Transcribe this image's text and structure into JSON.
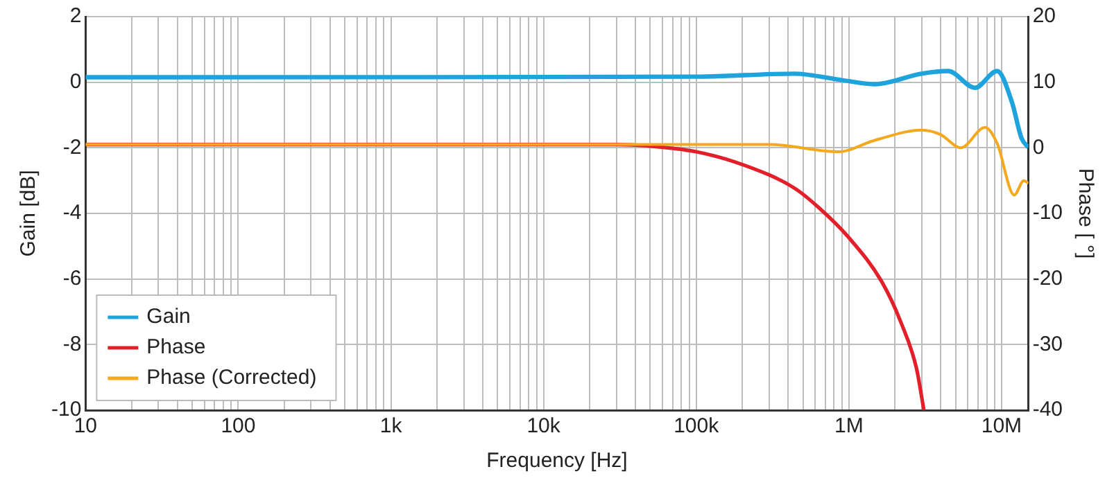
{
  "chart_data": {
    "type": "line",
    "xlabel": "Frequency [Hz]",
    "ylabel": "Gain [dB]",
    "y2label": "Phase [ °]",
    "log": "x",
    "grid": true,
    "legend": "bottom left",
    "marker": "none",
    "line_style": "solid",
    "xlim": [
      10,
      15000000
    ],
    "xticks": [
      10,
      {
        "value": 20,
        "label": null
      },
      {
        "value": 30,
        "label": null
      },
      {
        "value": 40,
        "label": null
      },
      {
        "value": 50,
        "label": null
      },
      {
        "value": 60,
        "label": null
      },
      {
        "value": 70,
        "label": null
      },
      {
        "value": 80,
        "label": null
      },
      {
        "value": 90,
        "label": null
      },
      100,
      {
        "value": 200,
        "label": null
      },
      {
        "value": 300,
        "label": null
      },
      {
        "value": 400,
        "label": null
      },
      {
        "value": 500,
        "label": null
      },
      {
        "value": 600,
        "label": null
      },
      {
        "value": 700,
        "label": null
      },
      {
        "value": 800,
        "label": null
      },
      {
        "value": 900,
        "label": null
      },
      {
        "value": 1000,
        "label": "1k"
      },
      {
        "value": 2000,
        "label": null
      },
      {
        "value": 3000,
        "label": null
      },
      {
        "value": 4000,
        "label": null
      },
      {
        "value": 5000,
        "label": null
      },
      {
        "value": 6000,
        "label": null
      },
      {
        "value": 7000,
        "label": null
      },
      {
        "value": 8000,
        "label": null
      },
      {
        "value": 9000,
        "label": null
      },
      {
        "value": 10000,
        "label": "10k"
      },
      {
        "value": 20000,
        "label": null
      },
      {
        "value": 30000,
        "label": null
      },
      {
        "value": 40000,
        "label": null
      },
      {
        "value": 50000,
        "label": null
      },
      {
        "value": 60000,
        "label": null
      },
      {
        "value": 70000,
        "label": null
      },
      {
        "value": 80000,
        "label": null
      },
      {
        "value": 90000,
        "label": null
      },
      {
        "value": 100000,
        "label": "100k"
      },
      {
        "value": 200000,
        "label": null
      },
      {
        "value": 300000,
        "label": null
      },
      {
        "value": 400000,
        "label": null
      },
      {
        "value": 500000,
        "label": null
      },
      {
        "value": 600000,
        "label": null
      },
      {
        "value": 700000,
        "label": null
      },
      {
        "value": 800000,
        "label": null
      },
      {
        "value": 900000,
        "label": null
      },
      {
        "value": 1000000,
        "label": "1M"
      },
      {
        "value": 2000000,
        "label": null
      },
      {
        "value": 3000000,
        "label": null
      },
      {
        "value": 4000000,
        "label": null
      },
      {
        "value": 5000000,
        "label": null
      },
      {
        "value": 6000000,
        "label": null
      },
      {
        "value": 7000000,
        "label": null
      },
      {
        "value": 8000000,
        "label": null
      },
      {
        "value": 9000000,
        "label": null
      },
      {
        "value": 10000000,
        "label": "10M"
      }
    ],
    "ylim": [
      -10,
      2
    ],
    "yticks": [
      -10,
      -8,
      -6,
      -4,
      -2,
      0,
      2
    ],
    "y2lim": [
      -40,
      20
    ],
    "y2ticks": [
      -40,
      -30,
      -20,
      -10,
      0,
      10,
      20
    ],
    "series": [
      {
        "name": "Gain",
        "color": "#1ea3dc",
        "x": [
          10,
          100000,
          437000,
          915000,
          1480000,
          2980000,
          4470000,
          6700000,
          9350000,
          11700000,
          13500000,
          15000000
        ],
        "values": [
          0.15,
          0.17,
          0.26,
          0.06,
          -0.06,
          0.26,
          0.34,
          -0.17,
          0.34,
          -0.61,
          -1.7,
          -1.99
        ]
      },
      {
        "name": "Phase",
        "color": "#e3202a",
        "axis": "y2",
        "x": [
          10,
          30000,
          48000,
          100000,
          209000,
          437000,
          634000,
          1000000,
          1650000,
          2200000,
          2770000,
          3100000
        ],
        "values": [
          0.5,
          0.5,
          0.3,
          -0.6,
          -2.7,
          -6.1,
          -9.1,
          -13.7,
          -20.5,
          -26.7,
          -33.6,
          -40
        ]
      },
      {
        "name": "Phase (Corrected)",
        "color": "#f4a81d",
        "axis": "y2",
        "x": [
          10,
          300000,
          850000,
          1500000,
          3000000,
          4000000,
          5400000,
          7800000,
          9350000,
          12100000,
          14000000,
          15000000
        ],
        "values": [
          0.5,
          0.5,
          -0.6,
          1.2,
          2.7,
          2.0,
          0,
          3.1,
          0.7,
          -7.2,
          -5.0,
          -5.4
        ]
      }
    ]
  }
}
